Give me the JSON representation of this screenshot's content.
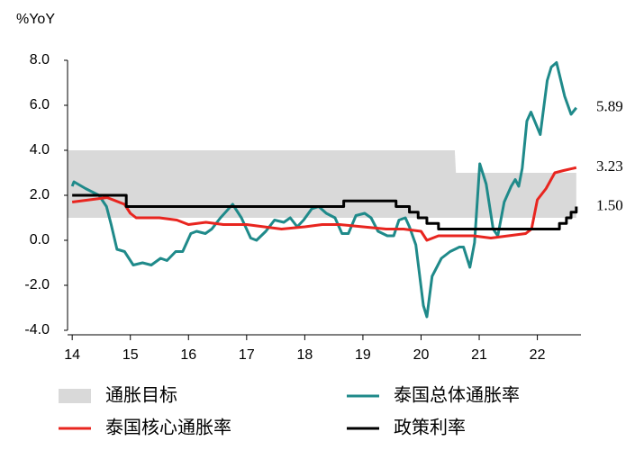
{
  "chart_data": {
    "type": "line",
    "y_axis_label": "%YoY",
    "xlim": [
      13.92,
      22.75
    ],
    "xticks": [
      14,
      15,
      16,
      17,
      18,
      19,
      20,
      21,
      22
    ],
    "ylim": [
      -4,
      8
    ],
    "yticks": [
      {
        "value": -4,
        "label": "-4.0"
      },
      {
        "value": -2,
        "label": "-2.0"
      },
      {
        "value": 0,
        "label": "0.0"
      },
      {
        "value": 2,
        "label": "2.0"
      },
      {
        "value": 4,
        "label": "4.0"
      },
      {
        "value": 6,
        "label": "6.0"
      },
      {
        "value": 8,
        "label": "8.0"
      }
    ],
    "grid": false,
    "band": {
      "name": "通胀目标",
      "color": "#d9d9d9",
      "x": [
        13.92,
        20.58,
        20.6,
        22.67
      ],
      "low": [
        1,
        1,
        1,
        1
      ],
      "high": [
        4,
        4,
        3,
        3
      ]
    },
    "series": [
      {
        "name": "泰国总体通胀率",
        "color": "#1f8a8a",
        "end_label": "5.89",
        "x": [
          14.0,
          14.03,
          14.23,
          14.46,
          14.59,
          14.67,
          14.77,
          14.9,
          15.05,
          15.21,
          15.36,
          15.52,
          15.63,
          15.78,
          15.9,
          16.04,
          16.14,
          16.29,
          16.4,
          16.55,
          16.76,
          16.91,
          17.07,
          17.17,
          17.33,
          17.48,
          17.64,
          17.75,
          17.87,
          17.98,
          18.12,
          18.24,
          18.37,
          18.52,
          18.64,
          18.75,
          18.88,
          19.03,
          19.14,
          19.26,
          19.42,
          19.53,
          19.62,
          19.73,
          19.8,
          19.91,
          20.04,
          20.1,
          20.19,
          20.35,
          20.5,
          20.66,
          20.73,
          20.84,
          20.92,
          21.01,
          21.12,
          21.24,
          21.32,
          21.43,
          21.55,
          21.62,
          21.68,
          21.74,
          21.82,
          21.89,
          22.05,
          22.17,
          22.24,
          22.33,
          22.47,
          22.58,
          22.67
        ],
        "values": [
          2.4,
          2.6,
          2.3,
          2.0,
          1.5,
          0.7,
          -0.4,
          -0.5,
          -1.1,
          -1.0,
          -1.1,
          -0.8,
          -0.9,
          -0.5,
          -0.5,
          0.3,
          0.4,
          0.3,
          0.5,
          1.0,
          1.6,
          1.0,
          0.1,
          0.0,
          0.4,
          0.9,
          0.8,
          1.0,
          0.6,
          0.9,
          1.4,
          1.5,
          1.2,
          1.0,
          0.3,
          0.3,
          1.1,
          1.2,
          1.0,
          0.4,
          0.2,
          0.2,
          0.9,
          1.0,
          0.6,
          -0.2,
          -2.9,
          -3.4,
          -1.6,
          -0.8,
          -0.5,
          -0.3,
          -0.3,
          -1.2,
          -0.1,
          3.4,
          2.5,
          0.5,
          0.2,
          1.7,
          2.4,
          2.7,
          2.4,
          3.2,
          5.3,
          5.7,
          4.7,
          7.1,
          7.7,
          7.9,
          6.4,
          5.6,
          5.89
        ]
      },
      {
        "name": "泰国核心通胀率",
        "color": "#e8251f",
        "end_label": "3.23",
        "x": [
          14.0,
          14.3,
          14.6,
          14.9,
          15.0,
          15.1,
          15.5,
          15.8,
          16.0,
          16.3,
          16.6,
          17.0,
          17.3,
          17.6,
          18.0,
          18.3,
          18.6,
          19.0,
          19.4,
          19.7,
          20.0,
          20.1,
          20.3,
          20.6,
          20.9,
          21.2,
          21.5,
          21.8,
          21.9,
          22.0,
          22.15,
          22.3,
          22.45,
          22.67
        ],
        "values": [
          1.7,
          1.8,
          1.9,
          1.6,
          1.2,
          1.0,
          1.0,
          0.9,
          0.7,
          0.8,
          0.7,
          0.7,
          0.6,
          0.5,
          0.6,
          0.7,
          0.7,
          0.6,
          0.5,
          0.5,
          0.4,
          0.0,
          0.2,
          0.2,
          0.2,
          0.1,
          0.2,
          0.3,
          0.5,
          1.8,
          2.3,
          3.0,
          3.1,
          3.23
        ]
      },
      {
        "name": "政策利率",
        "color": "#000000",
        "end_label": "1.50",
        "step": true,
        "x": [
          14.0,
          14.93,
          18.67,
          19.57,
          19.8,
          19.95,
          20.1,
          20.3,
          22.38,
          22.5,
          22.58,
          22.67
        ],
        "values": [
          2.0,
          1.5,
          1.75,
          1.5,
          1.25,
          1.0,
          0.75,
          0.5,
          0.75,
          1.0,
          1.25,
          1.5
        ]
      }
    ]
  }
}
